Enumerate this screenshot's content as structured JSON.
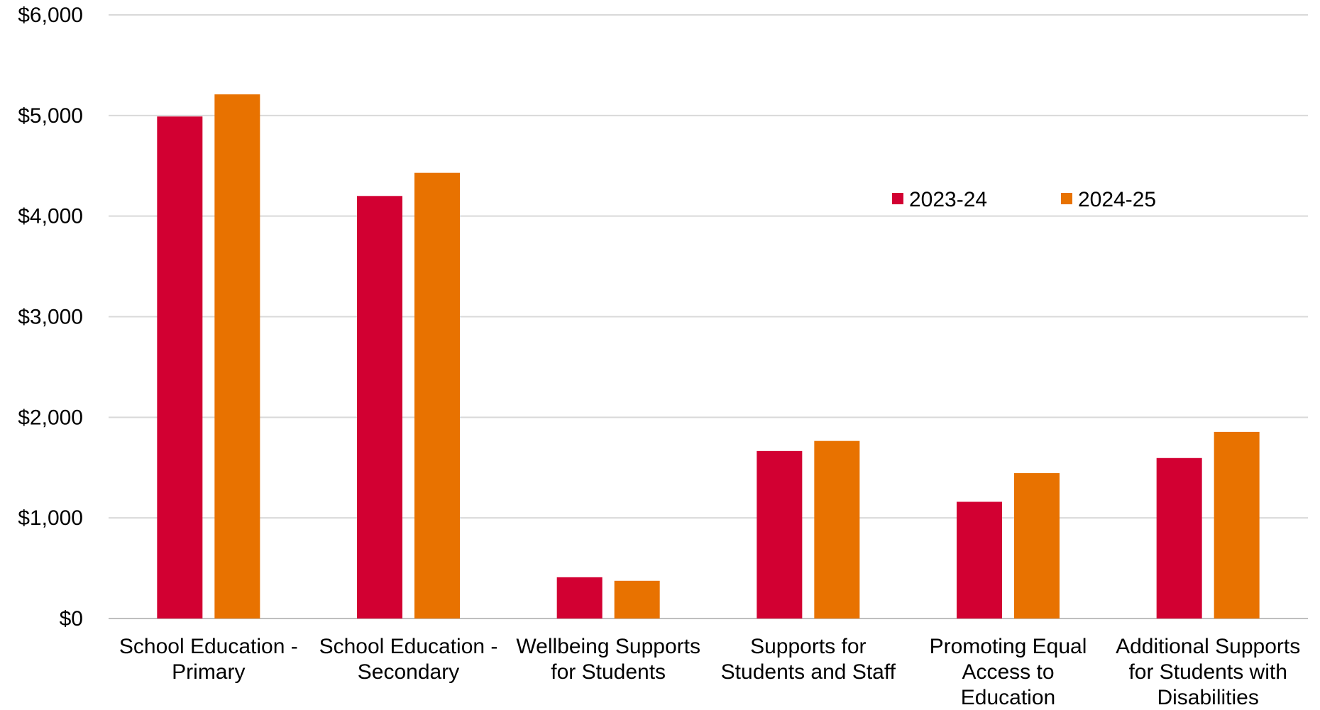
{
  "chart_data": {
    "type": "bar",
    "categories": [
      [
        "School Education -",
        "Primary"
      ],
      [
        "School Education -",
        "Secondary"
      ],
      [
        "Wellbeing Supports",
        "for Students"
      ],
      [
        "Supports for",
        "Students and Staff"
      ],
      [
        "Promoting Equal",
        "Access to",
        "Education"
      ],
      [
        "Additional Supports",
        "for Students with",
        "Disabilities"
      ]
    ],
    "series": [
      {
        "name": "2023-24",
        "color": "#d20032",
        "values": [
          4990,
          4200,
          410,
          1665,
          1160,
          1595
        ]
      },
      {
        "name": "2024-25",
        "color": "#e87200",
        "values": [
          5210,
          4430,
          375,
          1765,
          1445,
          1855
        ]
      }
    ],
    "ylim": [
      0,
      6000
    ],
    "yticks": [
      "$0",
      "$1,000",
      "$2,000",
      "$3,000",
      "$4,000",
      "$5,000",
      "$6,000"
    ],
    "grid": true,
    "legend": "top-right"
  }
}
